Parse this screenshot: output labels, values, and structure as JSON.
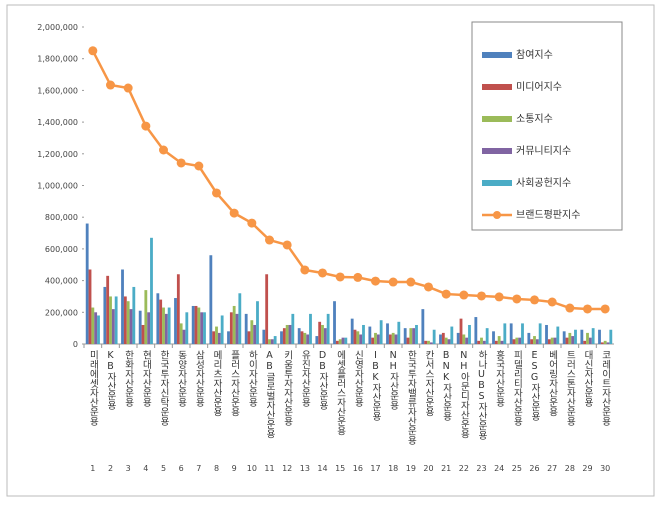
{
  "chart_data": {
    "type": "bar-line",
    "categories": [
      "미래에셋자산운용",
      "KB자산운용",
      "한화자산운용",
      "현대자산운용",
      "한국투자신탁운용",
      "동양자산운용",
      "삼성자산운용",
      "메리츠자산운용",
      "플러스자산운용",
      "하이자산운용",
      "AB글로벌자산운용",
      "키움투자자산운용",
      "유진자산운용",
      "DB자산운용",
      "에셋플러스자산운용",
      "신영자산운용",
      "IBK자산운용",
      "NH자산운용",
      "한국투자밸류자산운용",
      "칸서스자산운용",
      "BNK자산운용",
      "NH아문디자산운용",
      "하나UBS자산운용",
      "흥국자산운용",
      "피델리티자산운용",
      "ESG자산운용",
      "베어링자산운용",
      "트러스톤자산운용",
      "대신자산운용",
      "코레이트자산운용"
    ],
    "ranks": [
      1,
      2,
      3,
      4,
      5,
      6,
      7,
      8,
      9,
      10,
      11,
      12,
      13,
      14,
      15,
      16,
      17,
      18,
      19,
      20,
      21,
      22,
      23,
      24,
      25,
      26,
      27,
      28,
      29,
      30
    ],
    "series": [
      {
        "name": "참여지수",
        "type": "bar",
        "color": "#4f81bd",
        "values": [
          760000,
          360000,
          470000,
          210000,
          320000,
          290000,
          240000,
          560000,
          80000,
          190000,
          90000,
          80000,
          100000,
          50000,
          270000,
          160000,
          110000,
          130000,
          100000,
          220000,
          60000,
          70000,
          170000,
          80000,
          130000,
          70000,
          120000,
          80000,
          90000,
          90000
        ]
      },
      {
        "name": "미디어지수",
        "type": "bar",
        "color": "#c0504d",
        "values": [
          470000,
          430000,
          300000,
          120000,
          280000,
          440000,
          240000,
          80000,
          200000,
          80000,
          440000,
          100000,
          80000,
          140000,
          20000,
          90000,
          40000,
          60000,
          40000,
          20000,
          70000,
          160000,
          20000,
          20000,
          30000,
          30000,
          30000,
          40000,
          20000,
          10000
        ]
      },
      {
        "name": "소통지수",
        "type": "bar",
        "color": "#9bbb59",
        "values": [
          230000,
          300000,
          270000,
          340000,
          230000,
          130000,
          230000,
          110000,
          240000,
          150000,
          30000,
          120000,
          70000,
          120000,
          30000,
          80000,
          70000,
          70000,
          100000,
          20000,
          40000,
          60000,
          40000,
          50000,
          40000,
          50000,
          40000,
          70000,
          70000,
          20000
        ]
      },
      {
        "name": "커뮤니티지수",
        "type": "bar",
        "color": "#8064a2",
        "values": [
          200000,
          220000,
          220000,
          200000,
          190000,
          90000,
          200000,
          70000,
          190000,
          120000,
          30000,
          120000,
          60000,
          100000,
          40000,
          60000,
          60000,
          60000,
          100000,
          10000,
          30000,
          40000,
          20000,
          20000,
          40000,
          30000,
          40000,
          50000,
          40000,
          10000
        ]
      },
      {
        "name": "사회공헌지수",
        "type": "bar",
        "color": "#4bacc6",
        "values": [
          180000,
          300000,
          360000,
          670000,
          230000,
          200000,
          200000,
          180000,
          320000,
          270000,
          50000,
          190000,
          190000,
          190000,
          40000,
          120000,
          150000,
          140000,
          120000,
          90000,
          110000,
          120000,
          100000,
          130000,
          130000,
          130000,
          110000,
          90000,
          100000,
          90000
        ]
      },
      {
        "name": "브랜드평판지수",
        "type": "line",
        "color": "#f79646",
        "values": [
          1850000,
          1634000,
          1615000,
          1375000,
          1224000,
          1142000,
          1123000,
          953000,
          826000,
          763000,
          656000,
          625000,
          467000,
          448000,
          423000,
          420000,
          397000,
          391000,
          391000,
          360000,
          315000,
          309000,
          303000,
          297000,
          284000,
          278000,
          265000,
          227000,
          221000,
          221000
        ]
      }
    ],
    "ylim": [
      0,
      2000000
    ],
    "yticks": [
      0,
      {
        "value": 200000,
        "label": "200,000"
      },
      {
        "value": 400000,
        "label": "400,000"
      },
      {
        "value": 600000,
        "label": "600,000"
      },
      {
        "value": 800000,
        "label": "800,000"
      },
      {
        "value": 1000000,
        "label": "1,000,000"
      },
      {
        "value": 1200000,
        "label": "1,200,000"
      },
      {
        "value": 1400000,
        "label": "1,400,000"
      },
      {
        "value": 1600000,
        "label": "1,600,000"
      },
      {
        "value": 1800000,
        "label": "1,800,000"
      },
      {
        "value": 2000000,
        "label": "2,000,000"
      }
    ],
    "grid": false,
    "legend": "top-right"
  }
}
